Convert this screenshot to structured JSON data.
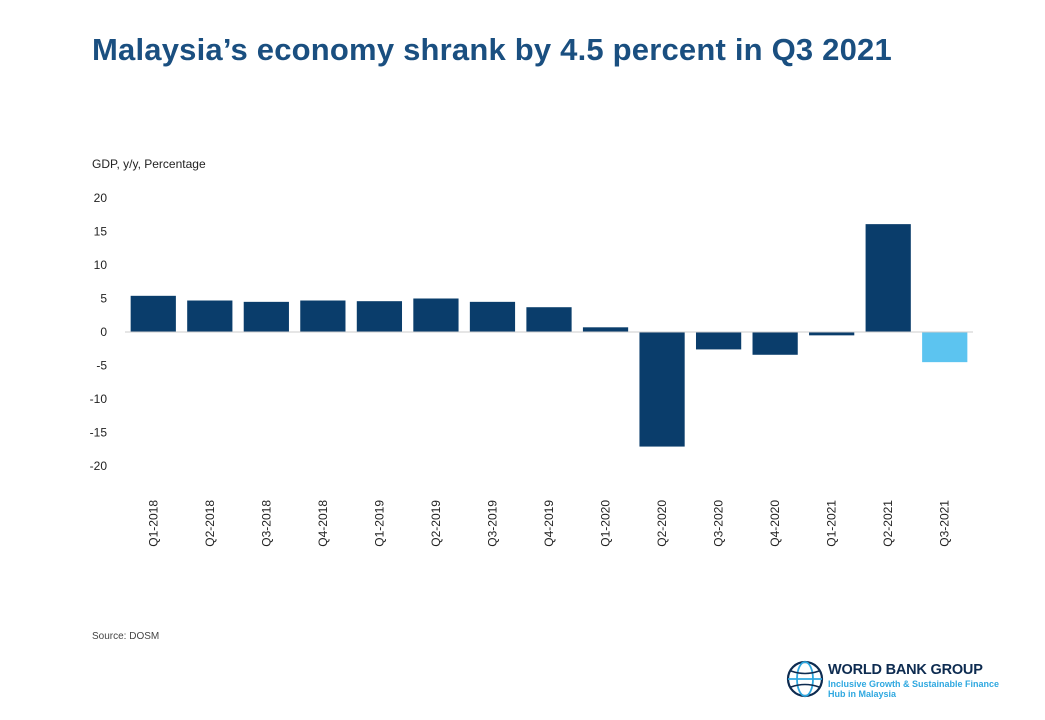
{
  "title": "Malaysia’s economy shrank by 4.5 percent in Q3 2021",
  "source": "Source: DOSM",
  "logo": {
    "name": "WORLD BANK GROUP",
    "subtitle_line1": "Inclusive Growth & Sustainable Finance",
    "subtitle_line2": "Hub in Malaysia"
  },
  "colors": {
    "bar": "#0a3d6b",
    "highlight": "#5cc4f0",
    "title": "#1a4f80"
  },
  "chart_data": {
    "type": "bar",
    "ylabel": "GDP, y/y, Percentage",
    "ylim": [
      -20,
      20
    ],
    "yticks": [
      20,
      15,
      10,
      5,
      0,
      -5,
      -10,
      -15,
      -20
    ],
    "grid": false,
    "categories": [
      "Q1-2018",
      "Q2-2018",
      "Q3-2018",
      "Q4-2018",
      "Q1-2019",
      "Q2-2019",
      "Q3-2019",
      "Q4-2019",
      "Q1-2020",
      "Q2-2020",
      "Q3-2020",
      "Q4-2020",
      "Q1-2021",
      "Q2-2021",
      "Q3-2021"
    ],
    "values": [
      5.4,
      4.7,
      4.5,
      4.7,
      4.6,
      5.0,
      4.5,
      3.7,
      0.7,
      -17.1,
      -2.6,
      -3.4,
      -0.5,
      16.1,
      -4.5
    ],
    "highlight_index": 14
  }
}
